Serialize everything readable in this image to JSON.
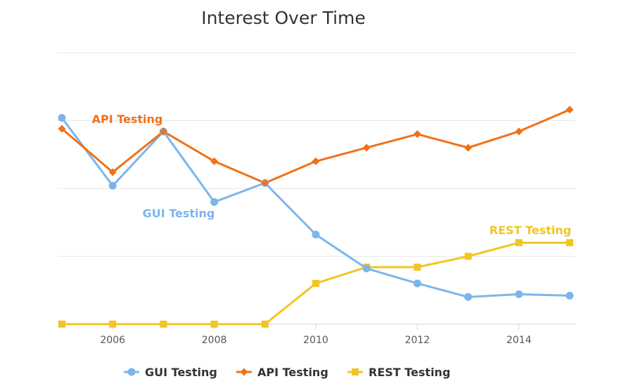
{
  "chart_data": {
    "type": "line",
    "title": "Interest Over Time",
    "xlabel": "",
    "ylabel": "",
    "x": [
      2005,
      2006,
      2007,
      2008,
      2009,
      2010,
      2011,
      2012,
      2013,
      2014,
      2015
    ],
    "x_ticks": [
      "2006",
      "2008",
      "2010",
      "2012",
      "2014"
    ],
    "xlim": [
      2005,
      2015
    ],
    "ylim": [
      0,
      100
    ],
    "y_gridlines": [
      0,
      25,
      50,
      75,
      100
    ],
    "grid": true,
    "legend_position": "bottom",
    "series": [
      {
        "name": "GUI Testing",
        "color": "#7cb5ec",
        "marker": "circle",
        "values": [
          76,
          51,
          71,
          45,
          52,
          33,
          20.5,
          15,
          10,
          11,
          10.5
        ]
      },
      {
        "name": "API Testing",
        "color": "#f07118",
        "marker": "diamond",
        "values": [
          72,
          56,
          71,
          60,
          52,
          60,
          65,
          70,
          65,
          71,
          79
        ]
      },
      {
        "name": "REST Testing",
        "color": "#f2c523",
        "marker": "square",
        "values": [
          0,
          0,
          0,
          0,
          0,
          15,
          21,
          21,
          25,
          30,
          30
        ]
      }
    ]
  }
}
